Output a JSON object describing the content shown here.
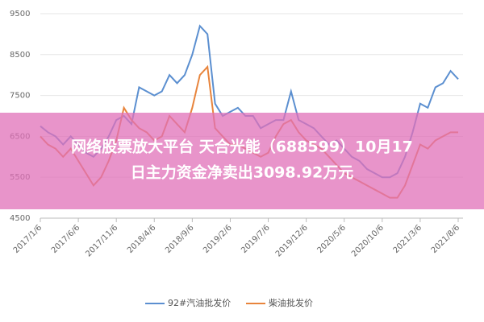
{
  "chart_data": {
    "type": "line",
    "title_lines": [
      "网络股票放大平台 天合光能（688599）10月17",
      "日主力资金净卖出3098.92万元"
    ],
    "categories": [
      "2017/1/6",
      null,
      null,
      null,
      null,
      "2017/6/6",
      null,
      null,
      null,
      null,
      "2017/11/6",
      null,
      null,
      null,
      null,
      "2018/4/6",
      null,
      null,
      null,
      null,
      "2018/9/6",
      null,
      null,
      null,
      null,
      "2019/2/6",
      null,
      null,
      null,
      null,
      "2019/7/6",
      null,
      null,
      null,
      null,
      "2019/12/6",
      null,
      null,
      null,
      null,
      "2020/5/6",
      null,
      null,
      null,
      null,
      "2020/10/6",
      null,
      null,
      null,
      null,
      "2021/3/6",
      null,
      null,
      null,
      null,
      "2021/8/6"
    ],
    "series": [
      {
        "name": "92#汽油批发价",
        "color": "#5b8fd0",
        "values": [
          6750,
          6600,
          6500,
          6300,
          6500,
          6300,
          6100,
          6000,
          6200,
          6500,
          6900,
          7000,
          6800,
          7700,
          7600,
          7500,
          7600,
          8000,
          7800,
          8000,
          8500,
          9200,
          9000,
          7300,
          7000,
          7100,
          7200,
          7000,
          7000,
          6700,
          6800,
          6900,
          6900,
          7600,
          6900,
          6800,
          6700,
          6500,
          6300,
          6400,
          6200,
          6000,
          5900,
          5700,
          5600,
          5500,
          5500,
          5600,
          6000,
          6600,
          7300,
          7200,
          7700,
          7800,
          8100,
          7900
        ]
      },
      {
        "name": "柴油批发价",
        "color": "#e8843c",
        "values": [
          6500,
          6300,
          6200,
          6000,
          6200,
          5900,
          5600,
          5300,
          5500,
          5900,
          6400,
          7200,
          6900,
          6700,
          6600,
          6400,
          6500,
          7000,
          6800,
          6600,
          7200,
          8000,
          8200,
          6700,
          6500,
          6300,
          6300,
          6200,
          6100,
          6000,
          6100,
          6500,
          6800,
          6900,
          6600,
          6400,
          6300,
          6200,
          6000,
          5800,
          5600,
          5500,
          5400,
          5300,
          5200,
          5100,
          5000,
          5000,
          5300,
          5800,
          6300,
          6200,
          6400,
          6500,
          6600,
          6600
        ]
      }
    ],
    "ylim": [
      4500,
      9500
    ],
    "yticks": [
      4500,
      5500,
      6500,
      7500,
      8500,
      9500
    ],
    "grid": true,
    "legend": "bottom"
  }
}
